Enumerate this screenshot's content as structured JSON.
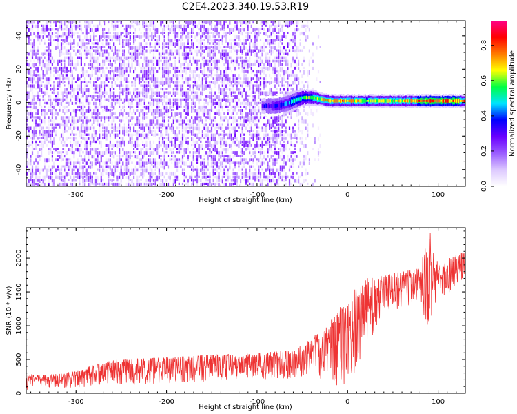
{
  "title": "C2E4.2023.340.19.53.R19",
  "chart_data": [
    {
      "type": "heatmap",
      "xlabel": "Height of straight line (km)",
      "ylabel": "Frequency (Hz)",
      "xlim": [
        -355,
        130
      ],
      "ylim": [
        -50,
        49
      ],
      "xticks": [
        -300,
        -200,
        -100,
        0,
        100
      ],
      "yticks": [
        -40,
        -20,
        0,
        20,
        40
      ],
      "colorbar": {
        "label": "Normalized spectral amplitude",
        "range": [
          0,
          0.94
        ],
        "ticks": [
          "0.0",
          "0.2",
          "0.4",
          "0.6",
          "0.8"
        ],
        "tick_values": [
          0,
          0.2,
          0.4,
          0.6,
          0.8
        ],
        "colormap": [
          "#ffffff",
          "#dcc8ff",
          "#9a5cff",
          "#6a00ff",
          "#0000ff",
          "#00e5ff",
          "#00ff44",
          "#ffff00",
          "#ff7a00",
          "#ff0000",
          "#ff0088"
        ]
      },
      "noise_region": {
        "x_range": [
          -355,
          -35
        ],
        "frequency_range": [
          -50,
          49
        ],
        "amplitude": 0.12
      },
      "signal_band": {
        "x": [
          -95,
          -80,
          -70,
          -60,
          -50,
          -40,
          -30,
          -20,
          -10,
          0,
          20,
          40,
          60,
          80,
          100,
          120,
          130
        ],
        "center_frequency": [
          -2,
          -2,
          -1,
          1,
          3,
          3,
          2,
          1,
          1,
          1,
          1,
          1,
          1,
          1,
          1,
          1,
          1
        ],
        "bandwidth": [
          6,
          6,
          6,
          6,
          5,
          5,
          4,
          4,
          4,
          4,
          4,
          4,
          4,
          4,
          4,
          4,
          4
        ],
        "peak_amplitude": [
          0.3,
          0.35,
          0.4,
          0.5,
          0.55,
          0.6,
          0.65,
          0.7,
          0.7,
          0.7,
          0.6,
          0.65,
          0.65,
          0.75,
          0.8,
          0.75,
          0.7
        ]
      }
    },
    {
      "type": "line",
      "xlabel": "Height of straight line (km)",
      "ylabel": "SNR (10 * v/v)",
      "xlim": [
        -355,
        130
      ],
      "ylim": [
        0,
        2450
      ],
      "xticks": [
        -300,
        -200,
        -100,
        0,
        100
      ],
      "yticks": [
        0,
        500,
        1000,
        1500,
        2000
      ],
      "series": [
        {
          "color": "#ee3333",
          "envelope": {
            "x": [
              -355,
              -330,
              -300,
              -280,
              -260,
              -200,
              -150,
              -100,
              -60,
              -40,
              -20,
              -10,
              0,
              10,
              20,
              40,
              60,
              80,
              90,
              100,
              110,
              120,
              130
            ],
            "low": [
              50,
              60,
              80,
              100,
              120,
              140,
              170,
              200,
              220,
              250,
              150,
              50,
              200,
              300,
              600,
              1200,
              1250,
              1350,
              800,
              1400,
              1450,
              1500,
              1600
            ],
            "high": [
              280,
              270,
              330,
              420,
              500,
              540,
              570,
              590,
              650,
              820,
              1050,
              1250,
              1400,
              1600,
              1700,
              1750,
              1800,
              1850,
              2450,
              1900,
              2000,
              2050,
              2100
            ]
          }
        }
      ]
    }
  ]
}
